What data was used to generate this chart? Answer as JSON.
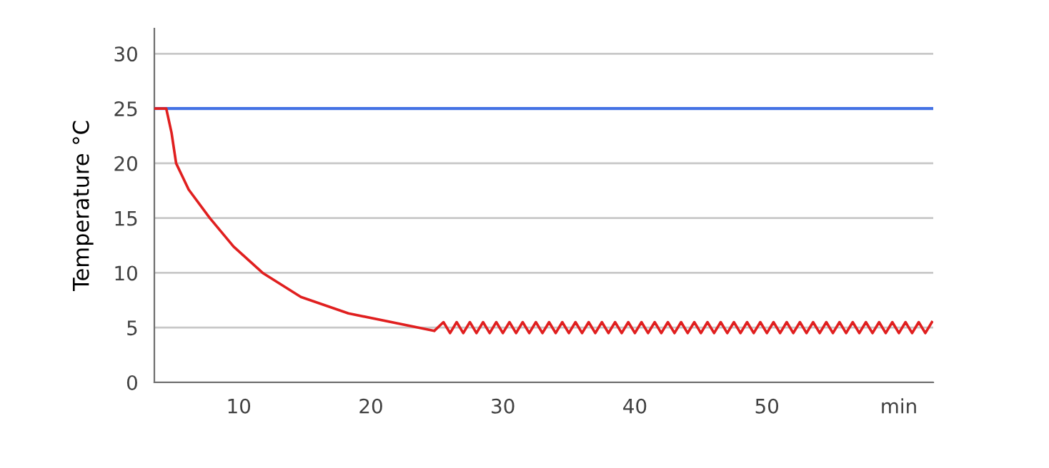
{
  "chart_data": {
    "type": "line",
    "ylabel": "Temperature °C",
    "xlim": [
      3.6,
      62.6
    ],
    "ylim": [
      0,
      32.3
    ],
    "xticks": [
      10,
      20,
      30,
      40,
      50,
      {
        "value": 60,
        "label": "min"
      }
    ],
    "yticks": [
      0,
      5,
      10,
      15,
      20,
      25,
      30
    ],
    "grid": "y",
    "marker": "none",
    "line_style": "solid",
    "series": [
      {
        "color": "#4472e4",
        "x": [
          3.6,
          62.6
        ],
        "values": [
          25,
          25
        ]
      },
      {
        "color": "#e01f1f",
        "x": [
          3.6,
          4.5,
          4.9,
          5.25,
          6.2,
          7.8,
          9.6,
          11.8,
          14.7,
          18.3,
          24.8,
          25.5,
          26.0,
          26.5,
          27.0,
          27.5,
          28.0,
          28.5,
          29.0,
          29.5,
          30.0,
          30.5,
          31.0,
          31.5,
          32.0,
          32.5,
          33.0,
          33.5,
          34.0,
          34.5,
          35.0,
          35.5,
          36.0,
          36.5,
          37.0,
          37.5,
          38.0,
          38.5,
          39.0,
          39.5,
          40.0,
          40.5,
          41.0,
          41.5,
          42.0,
          42.5,
          43.0,
          43.5,
          44.0,
          44.5,
          45.0,
          45.5,
          46.0,
          46.5,
          47.0,
          47.5,
          48.0,
          48.5,
          49.0,
          49.5,
          50.0,
          50.5,
          51.0,
          51.5,
          52.0,
          52.5,
          53.0,
          53.5,
          54.0,
          54.5,
          55.0,
          55.5,
          56.0,
          56.5,
          57.0,
          57.5,
          58.0,
          58.5,
          59.0,
          59.5,
          60.0,
          60.5,
          61.0,
          61.5,
          62.0,
          62.5
        ],
        "values": [
          25,
          25,
          22.8,
          20,
          17.6,
          15,
          12.4,
          10,
          7.8,
          6.3,
          4.7,
          5.5,
          4.5,
          5.5,
          4.5,
          5.5,
          4.5,
          5.5,
          4.5,
          5.5,
          4.5,
          5.5,
          4.5,
          5.5,
          4.5,
          5.5,
          4.5,
          5.5,
          4.5,
          5.5,
          4.5,
          5.5,
          4.5,
          5.5,
          4.5,
          5.5,
          4.5,
          5.5,
          4.5,
          5.5,
          4.5,
          5.5,
          4.5,
          5.5,
          4.5,
          5.5,
          4.5,
          5.5,
          4.5,
          5.5,
          4.5,
          5.5,
          4.5,
          5.5,
          4.5,
          5.5,
          4.5,
          5.5,
          4.5,
          5.5,
          4.5,
          5.5,
          4.5,
          5.5,
          4.5,
          5.5,
          4.5,
          5.5,
          4.5,
          5.5,
          4.5,
          5.5,
          4.5,
          5.5,
          4.5,
          5.5,
          4.5,
          5.5,
          4.5,
          5.5,
          4.5,
          5.5,
          4.5,
          5.5,
          4.5,
          5.5
        ]
      }
    ]
  }
}
